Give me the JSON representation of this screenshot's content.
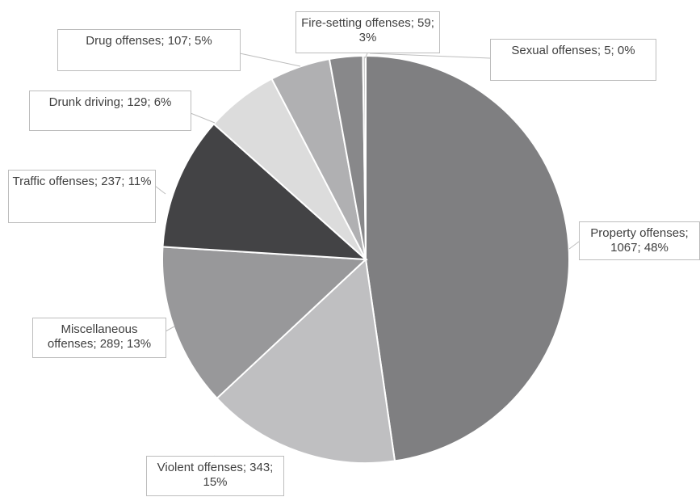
{
  "chart_data": {
    "type": "pie",
    "values": [
      1067,
      343,
      289,
      237,
      129,
      107,
      59,
      5
    ],
    "value_labels": [
      "Property offenses; 1067; 48%",
      "Violent offenses; 343; 15%",
      "Miscellaneous offenses; 289; 13%",
      "Traffic offenses; 237; 11%",
      "Drunk driving; 129; 6%",
      "Drug offenses; 107; 5%",
      "Fire-setting offenses; 59; 3%",
      "Sexual offenses; 5; 0%"
    ],
    "colors": [
      "#7f7f81",
      "#bfbfc1",
      "#98989a",
      "#434345",
      "#dcdcdc",
      "#b0b0b2",
      "#88888a",
      "#cfcfcf"
    ]
  }
}
